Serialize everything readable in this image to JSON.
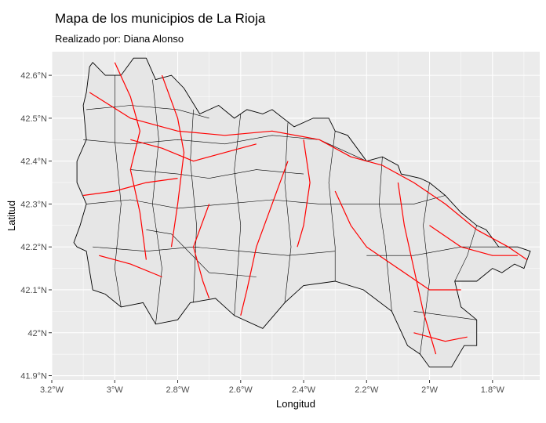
{
  "title": "Mapa de los municipios de La Rioja",
  "subtitle": "Realizado por: Diana Alonso",
  "colors": {
    "panel_background": "#ebebeb",
    "grid": "#ffffff",
    "municipality_fill": "#e6e6e6",
    "municipality_border": "#000000",
    "roads": "#ff0000"
  },
  "chart_data": {
    "type": "map",
    "xlabel": "Longitud",
    "ylabel": "Latitud",
    "xlim": [
      -3.2,
      -1.65
    ],
    "ylim": [
      41.89,
      42.655
    ],
    "x_ticks": [
      {
        "value": -3.2,
        "label": "3.2°W"
      },
      {
        "value": -3.0,
        "label": "3°W"
      },
      {
        "value": -2.8,
        "label": "2.8°W"
      },
      {
        "value": -2.6,
        "label": "2.6°W"
      },
      {
        "value": -2.4,
        "label": "2.4°W"
      },
      {
        "value": -2.2,
        "label": "2.2°W"
      },
      {
        "value": -2.0,
        "label": "2°W"
      },
      {
        "value": -1.8,
        "label": "1.8°W"
      }
    ],
    "y_ticks": [
      {
        "value": 41.9,
        "label": "41.9°N"
      },
      {
        "value": 42.0,
        "label": "42°N"
      },
      {
        "value": 42.1,
        "label": "42.1°N"
      },
      {
        "value": 42.2,
        "label": "42.2°N"
      },
      {
        "value": 42.3,
        "label": "42.3°N"
      },
      {
        "value": 42.4,
        "label": "42.4°N"
      },
      {
        "value": 42.5,
        "label": "42.5°N"
      },
      {
        "value": 42.6,
        "label": "42.6°N"
      }
    ],
    "grid": true,
    "outline": [
      [
        -3.12,
        42.2
      ],
      [
        -3.09,
        42.19
      ],
      [
        -3.07,
        42.1
      ],
      [
        -3.03,
        42.09
      ],
      [
        -2.98,
        42.06
      ],
      [
        -2.91,
        42.07
      ],
      [
        -2.87,
        42.02
      ],
      [
        -2.8,
        42.03
      ],
      [
        -2.76,
        42.07
      ],
      [
        -2.68,
        42.08
      ],
      [
        -2.62,
        42.04
      ],
      [
        -2.53,
        42.01
      ],
      [
        -2.46,
        42.07
      ],
      [
        -2.4,
        42.11
      ],
      [
        -2.3,
        42.12
      ],
      [
        -2.21,
        42.1
      ],
      [
        -2.12,
        42.05
      ],
      [
        -2.07,
        41.97
      ],
      [
        -2.03,
        41.95
      ],
      [
        -2.0,
        41.92
      ],
      [
        -1.93,
        41.92
      ],
      [
        -1.89,
        41.97
      ],
      [
        -1.85,
        41.97
      ],
      [
        -1.85,
        42.03
      ],
      [
        -1.9,
        42.06
      ],
      [
        -1.92,
        42.12
      ],
      [
        -1.85,
        42.12
      ],
      [
        -1.8,
        42.15
      ],
      [
        -1.77,
        42.14
      ],
      [
        -1.73,
        42.16
      ],
      [
        -1.7,
        42.15
      ],
      [
        -1.68,
        42.19
      ],
      [
        -1.72,
        42.2
      ],
      [
        -1.78,
        42.2
      ],
      [
        -1.82,
        42.24
      ],
      [
        -1.85,
        42.25
      ],
      [
        -1.9,
        42.28
      ],
      [
        -1.95,
        42.32
      ],
      [
        -2.0,
        42.35
      ],
      [
        -2.03,
        42.36
      ],
      [
        -2.09,
        42.37
      ],
      [
        -2.1,
        42.39
      ],
      [
        -2.15,
        42.41
      ],
      [
        -2.2,
        42.4
      ],
      [
        -2.26,
        42.46
      ],
      [
        -2.3,
        42.47
      ],
      [
        -2.32,
        42.5
      ],
      [
        -2.37,
        42.5
      ],
      [
        -2.43,
        42.48
      ],
      [
        -2.5,
        42.52
      ],
      [
        -2.53,
        42.51
      ],
      [
        -2.58,
        42.52
      ],
      [
        -2.62,
        42.5
      ],
      [
        -2.67,
        42.53
      ],
      [
        -2.73,
        42.51
      ],
      [
        -2.78,
        42.57
      ],
      [
        -2.82,
        42.6
      ],
      [
        -2.87,
        42.59
      ],
      [
        -2.9,
        42.64
      ],
      [
        -2.94,
        42.64
      ],
      [
        -2.98,
        42.6
      ],
      [
        -3.03,
        42.6
      ],
      [
        -3.07,
        42.63
      ],
      [
        -3.08,
        42.62
      ],
      [
        -3.09,
        42.56
      ],
      [
        -3.1,
        42.53
      ],
      [
        -3.09,
        42.45
      ],
      [
        -3.12,
        42.4
      ],
      [
        -3.12,
        42.35
      ],
      [
        -3.09,
        42.3
      ],
      [
        -3.11,
        42.25
      ],
      [
        -3.13,
        42.21
      ],
      [
        -3.12,
        42.2
      ]
    ],
    "municipality_borders": [
      [
        [
          -3.1,
          42.45
        ],
        [
          -2.95,
          42.44
        ],
        [
          -2.8,
          42.45
        ],
        [
          -2.65,
          42.44
        ],
        [
          -2.5,
          42.46
        ],
        [
          -2.35,
          42.45
        ],
        [
          -2.2,
          42.4
        ]
      ],
      [
        [
          -3.09,
          42.3
        ],
        [
          -2.95,
          42.31
        ],
        [
          -2.8,
          42.29
        ],
        [
          -2.65,
          42.3
        ],
        [
          -2.5,
          42.31
        ],
        [
          -2.35,
          42.3
        ],
        [
          -2.2,
          42.3
        ],
        [
          -2.05,
          42.3
        ],
        [
          -1.95,
          42.32
        ]
      ],
      [
        [
          -3.0,
          42.6
        ],
        [
          -3.0,
          42.45
        ],
        [
          -2.98,
          42.3
        ],
        [
          -3.0,
          42.15
        ],
        [
          -2.98,
          42.06
        ]
      ],
      [
        [
          -2.88,
          42.59
        ],
        [
          -2.86,
          42.45
        ],
        [
          -2.88,
          42.3
        ],
        [
          -2.85,
          42.15
        ],
        [
          -2.87,
          42.02
        ]
      ],
      [
        [
          -2.75,
          42.52
        ],
        [
          -2.76,
          42.4
        ],
        [
          -2.74,
          42.25
        ],
        [
          -2.75,
          42.07
        ]
      ],
      [
        [
          -2.6,
          42.51
        ],
        [
          -2.62,
          42.38
        ],
        [
          -2.6,
          42.25
        ],
        [
          -2.62,
          42.04
        ]
      ],
      [
        [
          -2.45,
          42.49
        ],
        [
          -2.46,
          42.35
        ],
        [
          -2.44,
          42.2
        ],
        [
          -2.46,
          42.07
        ]
      ],
      [
        [
          -2.3,
          42.47
        ],
        [
          -2.32,
          42.35
        ],
        [
          -2.3,
          42.2
        ],
        [
          -2.3,
          42.12
        ]
      ],
      [
        [
          -2.15,
          42.41
        ],
        [
          -2.16,
          42.3
        ],
        [
          -2.14,
          42.2
        ],
        [
          -2.12,
          42.05
        ]
      ],
      [
        [
          -2.0,
          42.35
        ],
        [
          -2.02,
          42.25
        ],
        [
          -2.0,
          42.12
        ],
        [
          -2.03,
          41.95
        ]
      ],
      [
        [
          -1.85,
          42.25
        ],
        [
          -1.88,
          42.18
        ],
        [
          -1.92,
          42.12
        ]
      ],
      [
        [
          -2.2,
          42.18
        ],
        [
          -2.05,
          42.18
        ],
        [
          -1.9,
          42.2
        ],
        [
          -1.78,
          42.2
        ]
      ],
      [
        [
          -3.09,
          42.52
        ],
        [
          -2.95,
          42.53
        ],
        [
          -2.8,
          42.52
        ],
        [
          -2.7,
          42.5
        ]
      ],
      [
        [
          -3.07,
          42.2
        ],
        [
          -2.9,
          42.19
        ],
        [
          -2.75,
          42.2
        ],
        [
          -2.6,
          42.19
        ],
        [
          -2.45,
          42.18
        ],
        [
          -2.3,
          42.19
        ]
      ],
      [
        [
          -2.05,
          42.05
        ],
        [
          -1.95,
          42.04
        ],
        [
          -1.85,
          42.03
        ]
      ],
      [
        [
          -2.95,
          42.38
        ],
        [
          -2.8,
          42.37
        ],
        [
          -2.7,
          42.36
        ],
        [
          -2.55,
          42.38
        ],
        [
          -2.4,
          42.37
        ]
      ],
      [
        [
          -2.9,
          42.24
        ],
        [
          -2.82,
          42.23
        ],
        [
          -2.7,
          42.14
        ],
        [
          -2.55,
          42.13
        ]
      ]
    ],
    "roads": [
      [
        [
          -3.0,
          42.63
        ],
        [
          -2.95,
          42.55
        ],
        [
          -2.92,
          42.47
        ],
        [
          -2.95,
          42.38
        ],
        [
          -2.92,
          42.28
        ],
        [
          -2.9,
          42.17
        ]
      ],
      [
        [
          -3.08,
          42.56
        ],
        [
          -2.95,
          42.5
        ],
        [
          -2.8,
          42.47
        ],
        [
          -2.65,
          42.46
        ],
        [
          -2.5,
          42.47
        ],
        [
          -2.35,
          42.45
        ],
        [
          -2.25,
          42.41
        ],
        [
          -2.15,
          42.39
        ],
        [
          -2.05,
          42.35
        ],
        [
          -1.95,
          42.3
        ],
        [
          -1.85,
          42.24
        ],
        [
          -1.75,
          42.2
        ],
        [
          -1.69,
          42.17
        ]
      ],
      [
        [
          -2.85,
          42.6
        ],
        [
          -2.8,
          42.5
        ],
        [
          -2.78,
          42.42
        ],
        [
          -2.8,
          42.3
        ],
        [
          -2.82,
          42.2
        ]
      ],
      [
        [
          -2.45,
          42.4
        ],
        [
          -2.5,
          42.3
        ],
        [
          -2.55,
          42.2
        ],
        [
          -2.58,
          42.1
        ],
        [
          -2.6,
          42.04
        ]
      ],
      [
        [
          -2.1,
          42.35
        ],
        [
          -2.08,
          42.25
        ],
        [
          -2.05,
          42.15
        ],
        [
          -2.02,
          42.05
        ],
        [
          -1.98,
          41.95
        ]
      ],
      [
        [
          -3.1,
          42.32
        ],
        [
          -3.0,
          42.33
        ],
        [
          -2.9,
          42.35
        ],
        [
          -2.8,
          42.36
        ]
      ],
      [
        [
          -2.7,
          42.3
        ],
        [
          -2.75,
          42.2
        ],
        [
          -2.72,
          42.12
        ],
        [
          -2.7,
          42.08
        ]
      ],
      [
        [
          -2.3,
          42.33
        ],
        [
          -2.25,
          42.25
        ],
        [
          -2.2,
          42.2
        ],
        [
          -2.1,
          42.15
        ],
        [
          -2.0,
          42.1
        ],
        [
          -1.9,
          42.1
        ]
      ],
      [
        [
          -2.0,
          42.25
        ],
        [
          -1.9,
          42.2
        ],
        [
          -1.8,
          42.18
        ],
        [
          -1.72,
          42.18
        ]
      ],
      [
        [
          -2.95,
          42.45
        ],
        [
          -2.85,
          42.43
        ],
        [
          -2.75,
          42.4
        ],
        [
          -2.65,
          42.42
        ],
        [
          -2.55,
          42.44
        ]
      ],
      [
        [
          -2.4,
          42.45
        ],
        [
          -2.38,
          42.35
        ],
        [
          -2.4,
          42.25
        ],
        [
          -2.42,
          42.2
        ]
      ],
      [
        [
          -2.05,
          42.0
        ],
        [
          -1.95,
          41.98
        ],
        [
          -1.88,
          41.99
        ]
      ],
      [
        [
          -3.05,
          42.18
        ],
        [
          -2.95,
          42.16
        ],
        [
          -2.85,
          42.13
        ]
      ]
    ]
  }
}
